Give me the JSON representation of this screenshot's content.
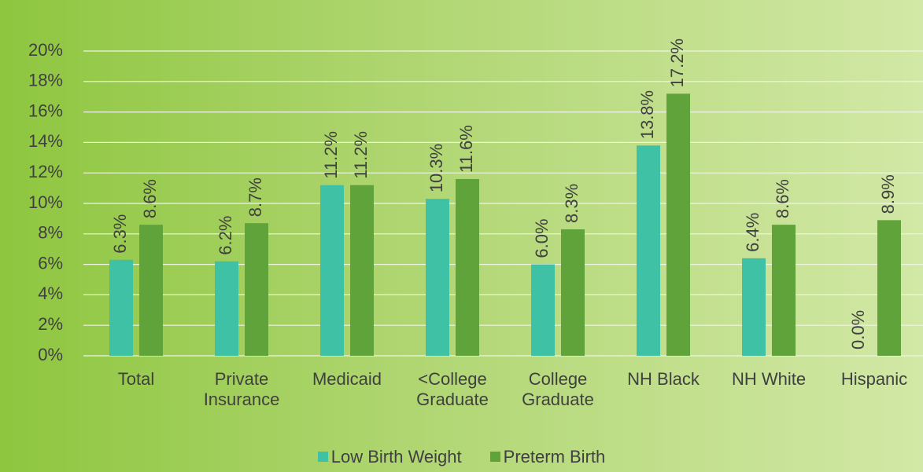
{
  "chart_data": {
    "type": "bar",
    "categories": [
      "Total",
      "Private Insurance",
      "Medicaid",
      "<College Graduate",
      "College Graduate",
      "NH Black",
      "NH White",
      "Hispanic"
    ],
    "series": [
      {
        "name": "Low Birth Weight",
        "color": "#3fc1a6",
        "values": [
          6.3,
          6.2,
          11.2,
          10.3,
          6.0,
          13.8,
          6.4,
          0.0
        ],
        "value_labels": [
          "6.3%",
          "6.2%",
          "11.2%",
          "10.3%",
          "6.0%",
          "13.8%",
          "6.4%",
          "0.0%"
        ]
      },
      {
        "name": "Preterm Birth",
        "color": "#5fa33a",
        "values": [
          8.6,
          8.7,
          11.2,
          11.6,
          8.3,
          17.2,
          8.6,
          8.9
        ],
        "value_labels": [
          "8.6%",
          "8.7%",
          "11.2%",
          "11.6%",
          "8.3%",
          "17.2%",
          "8.6%",
          "8.9%"
        ]
      }
    ],
    "ylim": [
      0,
      20
    ],
    "yticks": [
      {
        "value": 0,
        "label": "0%"
      },
      {
        "value": 2,
        "label": "2%"
      },
      {
        "value": 4,
        "label": "4%"
      },
      {
        "value": 6,
        "label": "6%"
      },
      {
        "value": 8,
        "label": "8%"
      },
      {
        "value": 10,
        "label": "10%"
      },
      {
        "value": 12,
        "label": "12%"
      },
      {
        "value": 14,
        "label": "14%"
      },
      {
        "value": 16,
        "label": "16%"
      },
      {
        "value": 18,
        "label": "18%"
      },
      {
        "value": 20,
        "label": "20%"
      }
    ],
    "grid": true,
    "legend": "bottom"
  }
}
